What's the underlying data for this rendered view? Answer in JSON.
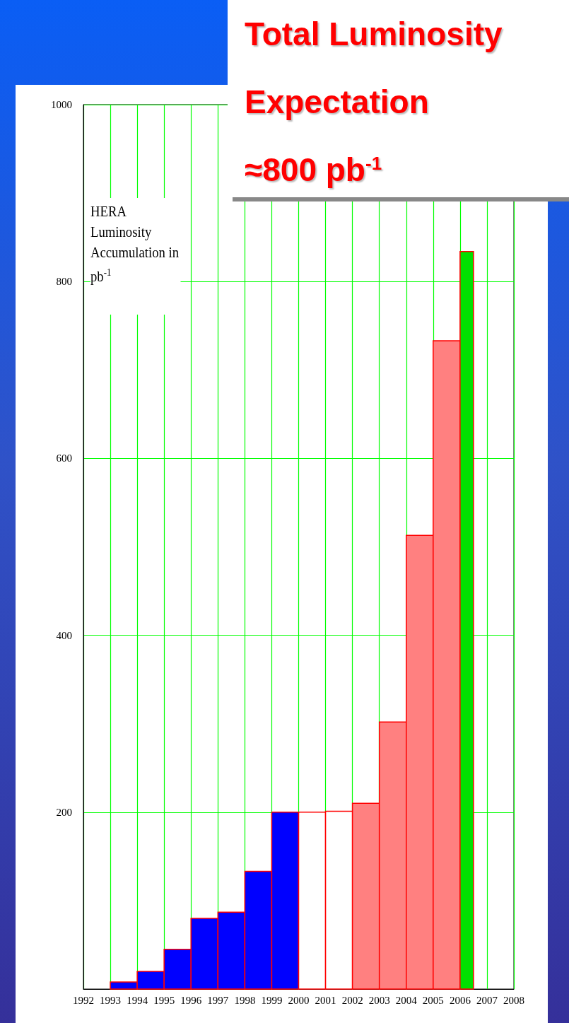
{
  "chart_data": {
    "type": "histogram",
    "title": "Total Luminosity Expectation",
    "subtitle": "≈800 pb$^{-1}$",
    "annotations": [
      "HERA Luminosity Accumulation in pb$^{-1}$"
    ],
    "bins": [
      1993,
      1994,
      1995,
      1996,
      1997,
      1998,
      1999,
      2000,
      2001,
      2002,
      2003,
      2004,
      2005,
      2006,
      2006.5
    ],
    "values": [
      8,
      20,
      45,
      80,
      87,
      133,
      200,
      200,
      201,
      210,
      302,
      513,
      733,
      834
    ],
    "colors": [
      "#0000ff",
      "#0000ff",
      "#0000ff",
      "#0000ff",
      "#0000ff",
      "#0000ff",
      "#0000ff",
      "#ffffff",
      "#ffffff",
      "#ff8080",
      "#ff8080",
      "#ff8080",
      "#ff8080",
      "#00e000"
    ],
    "xlim": [
      1992,
      2008
    ],
    "xticks": [
      1992,
      1993,
      1994,
      1995,
      1996,
      1997,
      1998,
      1999,
      2000,
      2001,
      2002,
      2003,
      2004,
      2005,
      2006,
      2007,
      2008
    ],
    "ylim": [
      0,
      1000
    ],
    "yticks": [
      200,
      400,
      600,
      800,
      1000
    ],
    "grid": true
  }
}
